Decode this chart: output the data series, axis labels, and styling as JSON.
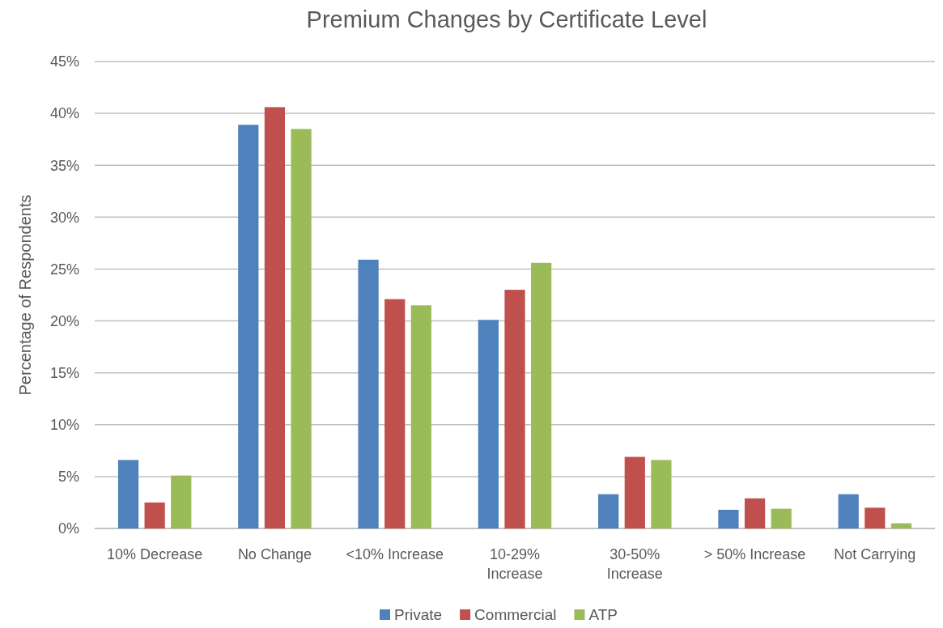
{
  "chart_data": {
    "type": "bar",
    "title": "Premium Changes by Certificate Level",
    "ylabel": "Percentage of Respondents",
    "categories": [
      "10% Decrease",
      "No Change",
      "<10% Increase",
      "10-29% Increase",
      "30-50% Increase",
      "> 50% Increase",
      "Not Carrying"
    ],
    "series": [
      {
        "name": "Private",
        "color": "#4f81bd",
        "values": [
          6.6,
          38.9,
          25.9,
          20.1,
          3.3,
          1.8,
          3.3
        ]
      },
      {
        "name": "Commercial",
        "color": "#c0504d",
        "values": [
          2.5,
          40.6,
          22.1,
          23.0,
          6.9,
          2.9,
          2.0
        ]
      },
      {
        "name": "ATP",
        "color": "#9bbb59",
        "values": [
          5.1,
          38.5,
          21.5,
          25.6,
          6.6,
          1.9,
          0.5
        ]
      }
    ],
    "ylim": [
      0,
      45
    ],
    "yticks": [
      {
        "value": 0,
        "label": "0%"
      },
      {
        "value": 5,
        "label": "5%"
      },
      {
        "value": 10,
        "label": "10%"
      },
      {
        "value": 15,
        "label": "15%"
      },
      {
        "value": 20,
        "label": "20%"
      },
      {
        "value": 25,
        "label": "25%"
      },
      {
        "value": 30,
        "label": "30%"
      },
      {
        "value": 35,
        "label": "35%"
      },
      {
        "value": 40,
        "label": "40%"
      },
      {
        "value": 45,
        "label": "45%"
      }
    ],
    "grid": "y",
    "legend": "bottom"
  }
}
